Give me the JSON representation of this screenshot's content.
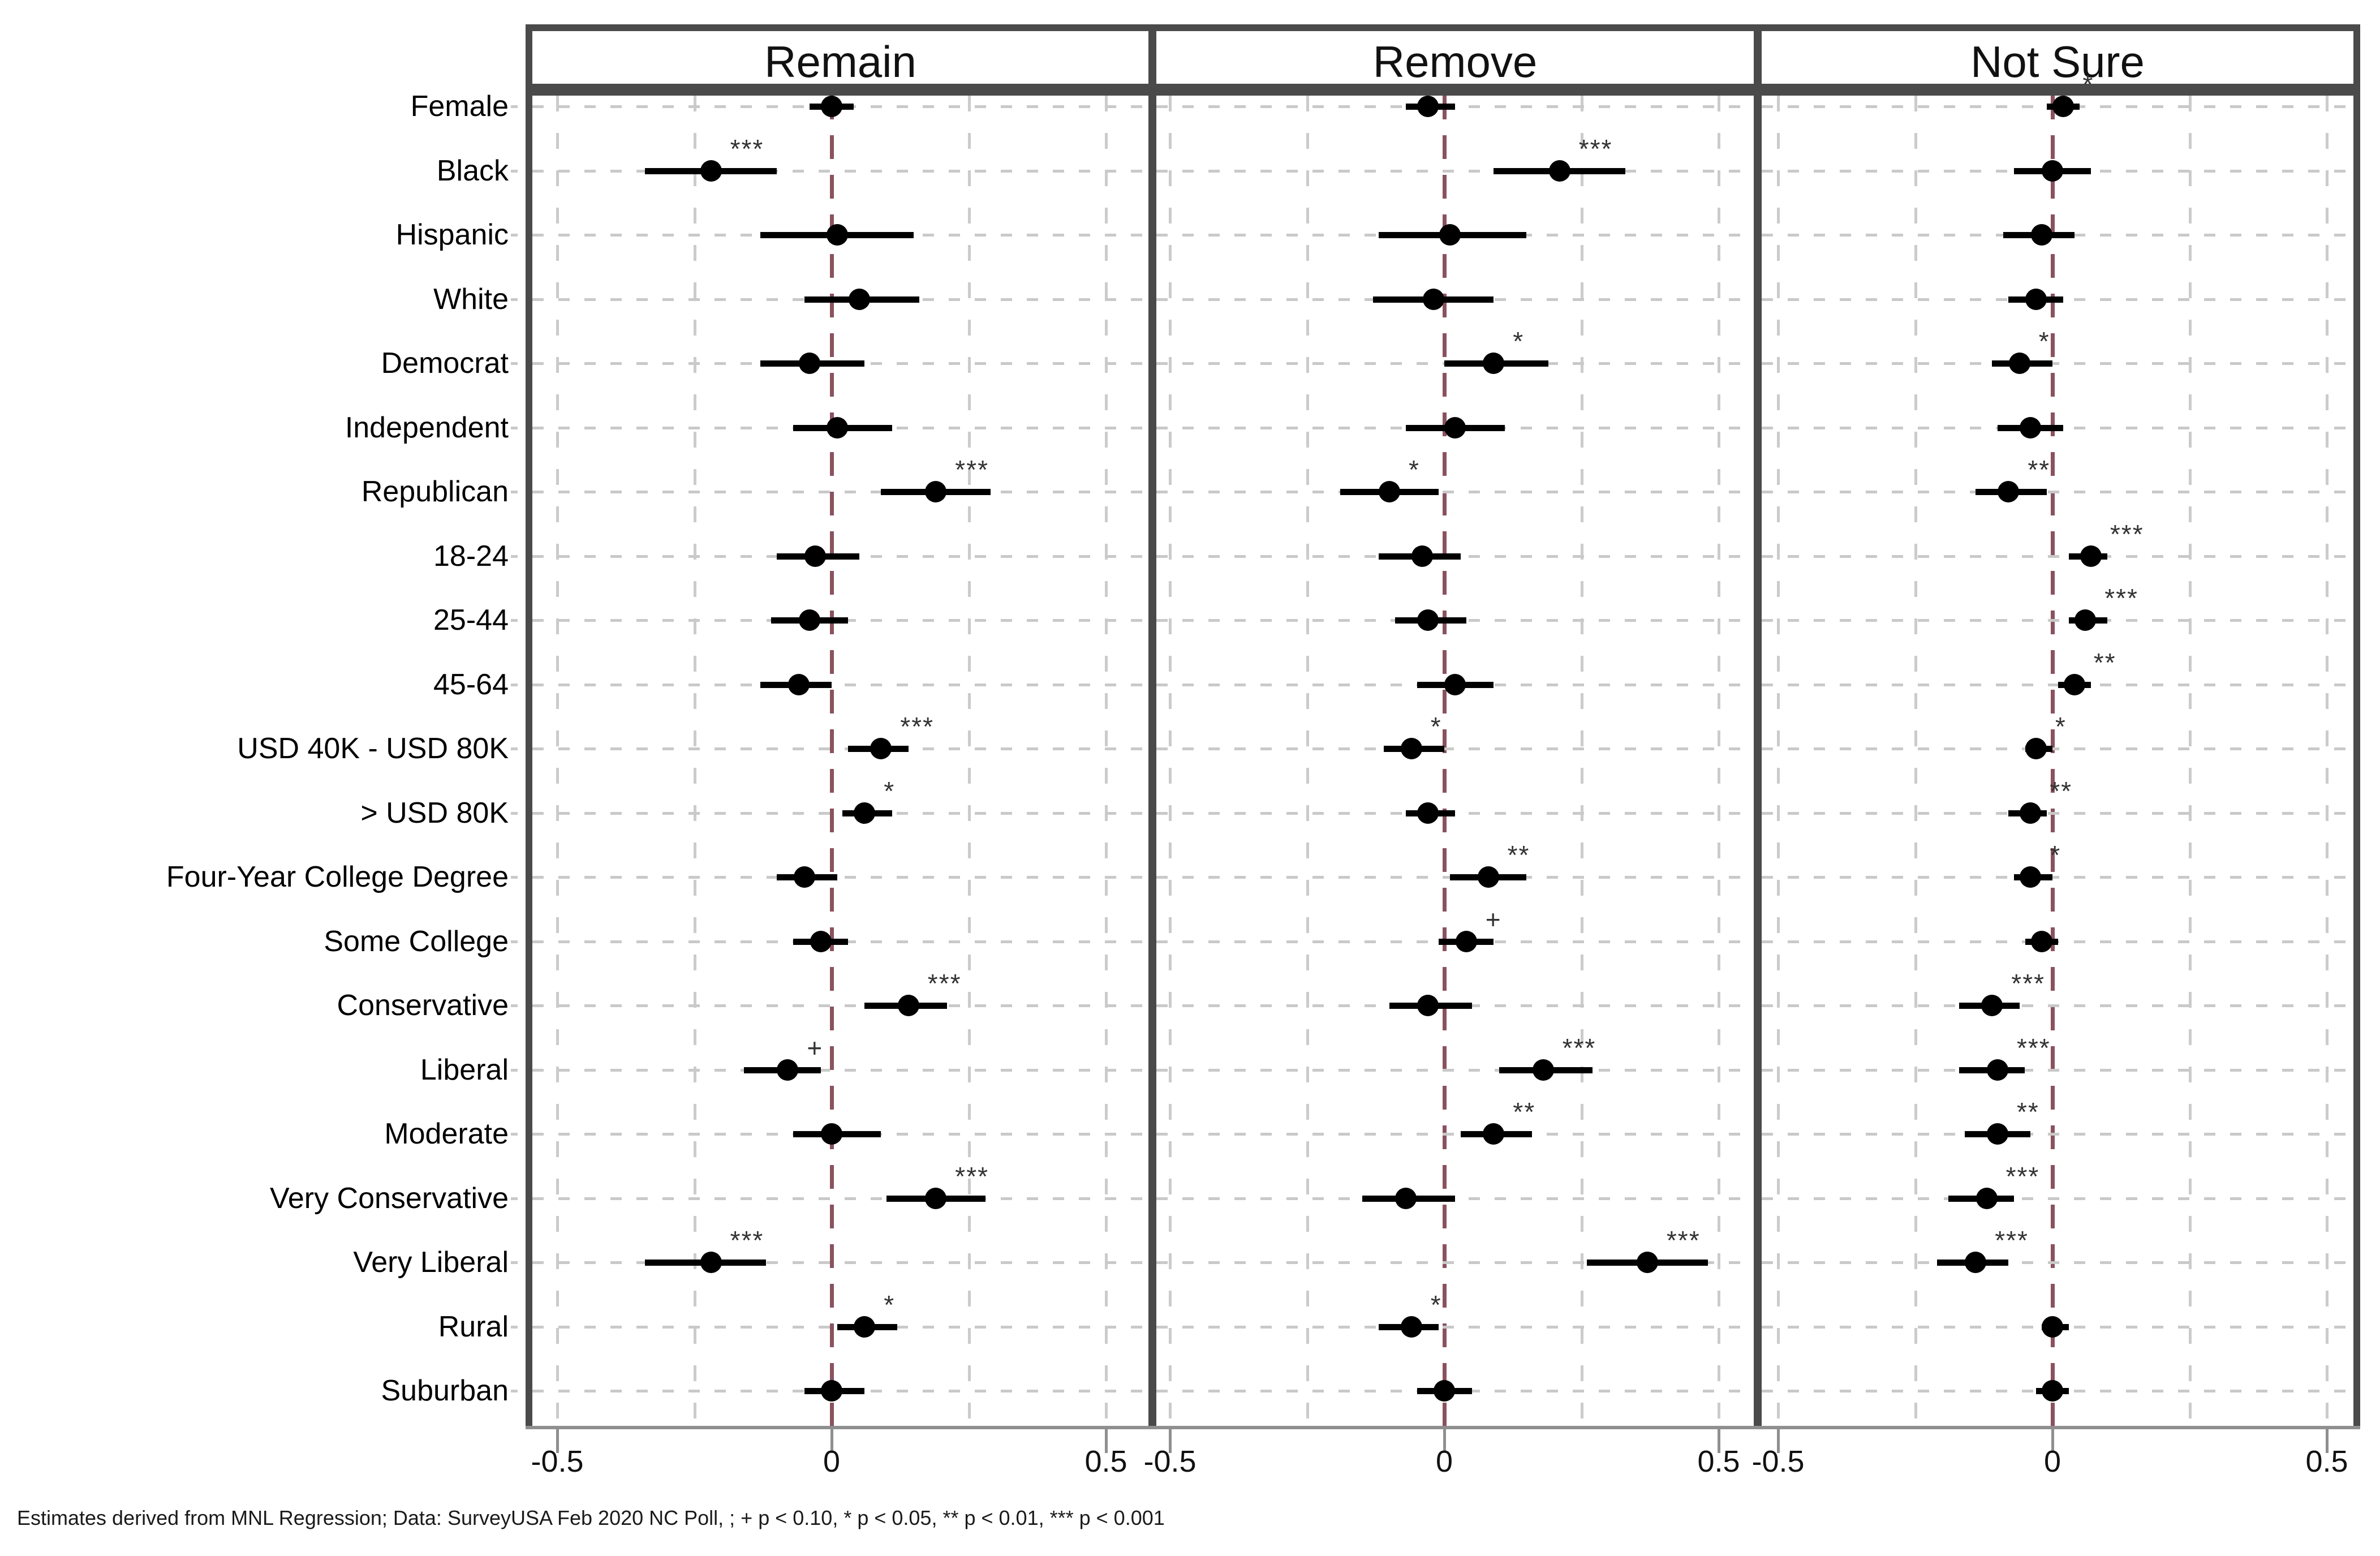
{
  "figure": {
    "panels": [
      {
        "title": "Remain"
      },
      {
        "title": "Remove"
      },
      {
        "title": "Not Sure"
      }
    ],
    "x_axis": {
      "tick_labels": [
        "-0.5",
        "0",
        "0.5"
      ],
      "ticks": [
        -0.5,
        0,
        0.5
      ]
    },
    "footnote": "Estimates derived from MNL Regression; Data: SurveyUSA Feb 2020 NC Poll, ; + p < 0.10, * p < 0.05, ** p < 0.01, *** p < 0.001",
    "colors": {
      "panel_border": "#4a4a4a",
      "axis": "#8f8f8f",
      "gridline": "#cbcbcb",
      "zero_line": "#8a525e",
      "marker": "#000000"
    }
  },
  "chart_data": {
    "type": "scatter",
    "subtype": "coefficient-forest-plot",
    "title": "",
    "xlabel": "",
    "ylabel": "",
    "xlim": [
      -0.56,
      0.58
    ],
    "x_gridlines": [
      -0.5,
      -0.25,
      0.25,
      0.5
    ],
    "zero_line": 0,
    "legend_position": "none",
    "categories": [
      "Female",
      "Black",
      "Hispanic",
      "White",
      "Democrat",
      "Independent",
      "Republican",
      "18-24",
      "25-44",
      "45-64",
      "USD 40K - USD 80K",
      "> USD 80K",
      "Four-Year College Degree",
      "Some College",
      "Conservative",
      "Liberal",
      "Moderate",
      "Very Conservative",
      "Very Liberal",
      "Rural",
      "Suburban"
    ],
    "series": [
      {
        "name": "Remain",
        "estimates": [
          0.0,
          -0.22,
          0.01,
          0.05,
          -0.04,
          0.01,
          0.19,
          -0.03,
          -0.04,
          -0.06,
          0.09,
          0.06,
          -0.05,
          -0.02,
          0.14,
          -0.08,
          0.0,
          0.19,
          -0.22,
          0.06,
          0.0
        ],
        "ci_low": [
          -0.04,
          -0.34,
          -0.13,
          -0.05,
          -0.13,
          -0.07,
          0.09,
          -0.1,
          -0.11,
          -0.13,
          0.03,
          0.02,
          -0.1,
          -0.07,
          0.06,
          -0.16,
          -0.07,
          0.1,
          -0.34,
          0.01,
          -0.05
        ],
        "ci_high": [
          0.04,
          -0.1,
          0.15,
          0.16,
          0.06,
          0.11,
          0.29,
          0.05,
          0.03,
          0.0,
          0.14,
          0.11,
          0.01,
          0.03,
          0.21,
          -0.02,
          0.09,
          0.28,
          -0.12,
          0.12,
          0.06
        ],
        "sig": [
          "",
          "***",
          "",
          "",
          "",
          "",
          "***",
          "",
          "",
          "",
          "***",
          "*",
          "",
          "",
          "***",
          "+",
          "",
          "***",
          "***",
          "*",
          ""
        ]
      },
      {
        "name": "Remove",
        "estimates": [
          -0.03,
          0.21,
          0.01,
          -0.02,
          0.09,
          0.02,
          -0.1,
          -0.04,
          -0.03,
          0.02,
          -0.06,
          -0.03,
          0.08,
          0.04,
          -0.03,
          0.18,
          0.09,
          -0.07,
          0.37,
          -0.06,
          0.0
        ],
        "ci_low": [
          -0.07,
          0.09,
          -0.12,
          -0.13,
          0.0,
          -0.07,
          -0.19,
          -0.12,
          -0.09,
          -0.05,
          -0.11,
          -0.07,
          0.01,
          -0.01,
          -0.1,
          0.1,
          0.03,
          -0.15,
          0.26,
          -0.12,
          -0.05
        ],
        "ci_high": [
          0.02,
          0.33,
          0.15,
          0.09,
          0.19,
          0.11,
          -0.01,
          0.03,
          0.04,
          0.09,
          0.0,
          0.02,
          0.15,
          0.09,
          0.05,
          0.27,
          0.16,
          0.02,
          0.48,
          -0.01,
          0.05
        ],
        "sig": [
          "",
          "***",
          "",
          "",
          "*",
          "",
          "*",
          "",
          "",
          "",
          "*",
          "",
          "**",
          "+",
          "",
          "***",
          "**",
          "",
          "***",
          "*",
          ""
        ]
      },
      {
        "name": "Not Sure",
        "estimates": [
          0.02,
          0.0,
          -0.02,
          -0.03,
          -0.06,
          -0.04,
          -0.08,
          0.07,
          0.06,
          0.04,
          -0.03,
          -0.04,
          -0.04,
          -0.02,
          -0.11,
          -0.1,
          -0.1,
          -0.12,
          -0.14,
          0.0,
          0.0
        ],
        "ci_low": [
          -0.01,
          -0.07,
          -0.09,
          -0.08,
          -0.11,
          -0.1,
          -0.14,
          0.03,
          0.03,
          0.01,
          -0.05,
          -0.08,
          -0.07,
          -0.05,
          -0.17,
          -0.17,
          -0.16,
          -0.19,
          -0.21,
          -0.02,
          -0.03
        ],
        "ci_high": [
          0.05,
          0.07,
          0.04,
          0.02,
          0.0,
          0.02,
          -0.01,
          0.1,
          0.1,
          0.07,
          0.0,
          -0.01,
          0.0,
          0.01,
          -0.06,
          -0.05,
          -0.04,
          -0.07,
          -0.08,
          0.03,
          0.03
        ],
        "sig": [
          "*",
          "",
          "",
          "",
          "*",
          "",
          "**",
          "***",
          "***",
          "**",
          "*",
          "**",
          "*",
          "",
          "***",
          "***",
          "**",
          "***",
          "***",
          "",
          ""
        ]
      }
    ]
  }
}
